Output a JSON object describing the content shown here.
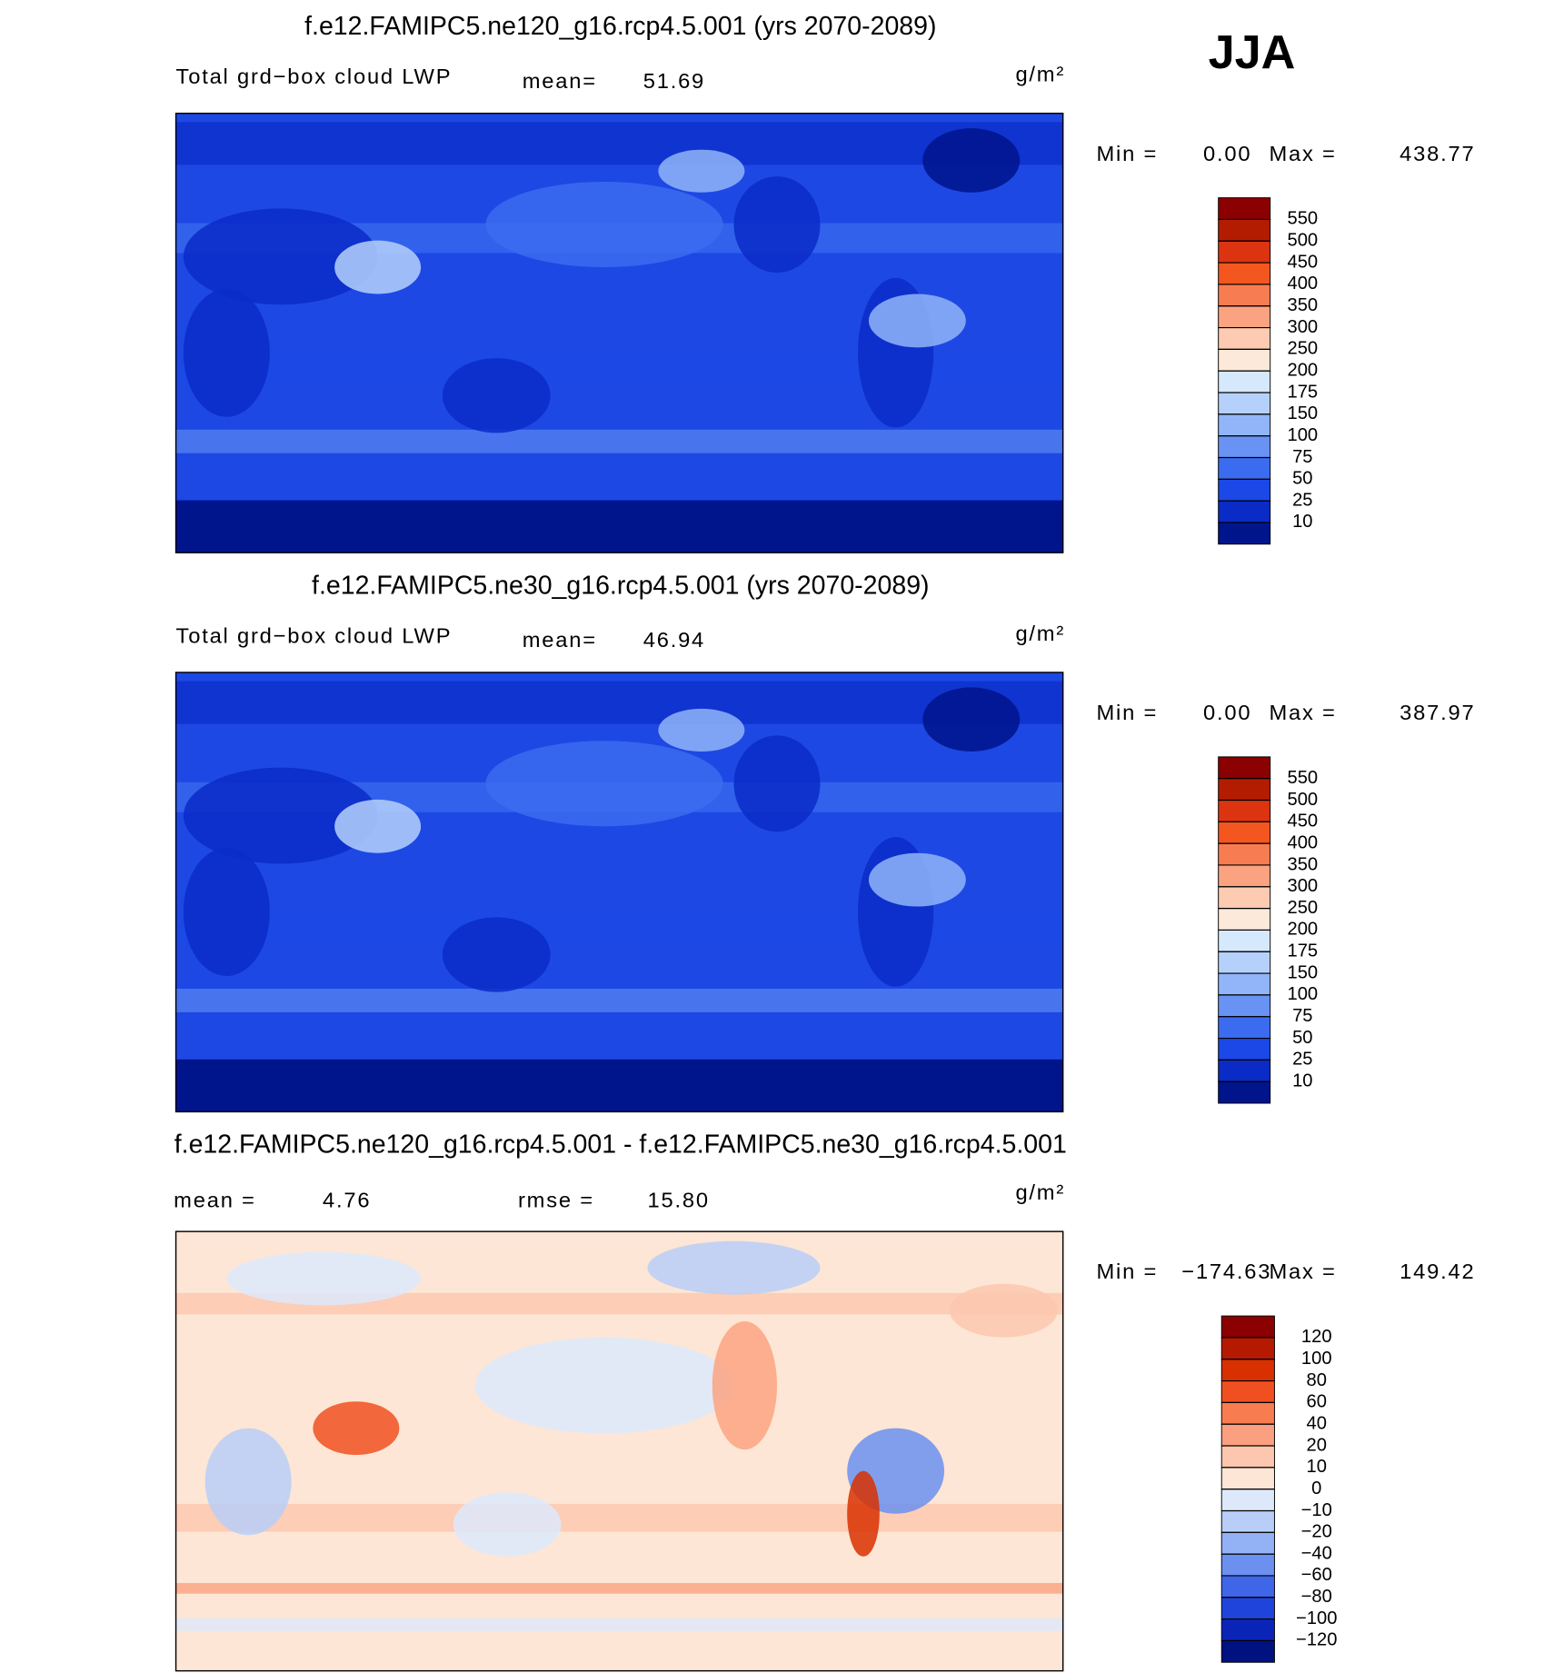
{
  "season": "JJA",
  "panels": [
    {
      "title": "f.e12.FAMIPC5.ne120_g16.rcp4.5.001 (yrs 2070-2089)",
      "subtitle": "Total grd−box cloud LWP",
      "mean_label": "mean=",
      "mean": 51.69,
      "units": "g/m²",
      "min_label": "Min =",
      "min": {
        "value": 0,
        "label": "0.00"
      },
      "max_label": "Max =",
      "max": 438.77,
      "colorbar": {
        "levels": [
          550,
          500,
          450,
          400,
          350,
          300,
          250,
          200,
          175,
          150,
          100,
          75,
          50,
          25,
          10
        ],
        "colors": [
          "#8b0000",
          "#b31c00",
          "#dc3410",
          "#f4561f",
          "#f87c52",
          "#fba381",
          "#fdcab2",
          "#fde9da",
          "#d5e8fc",
          "#b5d1fb",
          "#91b5f8",
          "#6893f4",
          "#3b6cf0",
          "#1b48e6",
          "#0a2bc6",
          "#00148c"
        ]
      }
    },
    {
      "title": "f.e12.FAMIPC5.ne30_g16.rcp4.5.001 (yrs 2070-2089)",
      "subtitle": "Total grd−box cloud LWP",
      "mean_label": "mean=",
      "mean": 46.94,
      "units": "g/m²",
      "min_label": "Min =",
      "min": {
        "value": 0,
        "label": "0.00"
      },
      "max_label": "Max =",
      "max": 387.97,
      "colorbar": {
        "levels": [
          550,
          500,
          450,
          400,
          350,
          300,
          250,
          200,
          175,
          150,
          100,
          75,
          50,
          25,
          10
        ],
        "colors": [
          "#8b0000",
          "#b31c00",
          "#dc3410",
          "#f4561f",
          "#f87c52",
          "#fba381",
          "#fdcab2",
          "#fde9da",
          "#d5e8fc",
          "#b5d1fb",
          "#91b5f8",
          "#6893f4",
          "#3b6cf0",
          "#1b48e6",
          "#0a2bc6",
          "#00148c"
        ]
      }
    },
    {
      "title": "f.e12.FAMIPC5.ne120_g16.rcp4.5.001 - f.e12.FAMIPC5.ne30_g16.rcp4.5.001",
      "mean_label": "mean =",
      "mean": 4.76,
      "rmse_label": "rmse =",
      "rmse": {
        "value": 15.8,
        "label": "15.80"
      },
      "units": "g/m²",
      "min_label": "Min =",
      "min": {
        "value": -174.63,
        "label": "−174.63"
      },
      "max_label": "Max =",
      "max": 149.42,
      "colorbar": {
        "levels": [
          120,
          100,
          80,
          60,
          40,
          20,
          10,
          0,
          {
            "value": -10,
            "label": "−10"
          },
          {
            "value": -20,
            "label": "−20"
          },
          {
            "value": -40,
            "label": "−40"
          },
          {
            "value": -60,
            "label": "−60"
          },
          {
            "value": -80,
            "label": "−80"
          },
          {
            "value": -100,
            "label": "−100"
          },
          {
            "value": -120,
            "label": "−120"
          }
        ],
        "colors": [
          "#8b0000",
          "#b51a00",
          "#d83000",
          "#f05020",
          "#f77c50",
          "#fa9f80",
          "#fcc7ae",
          "#fde6d5",
          "#dde9fb",
          "#b8cef8",
          "#93b2f5",
          "#6b90f0",
          "#3f66e8",
          "#1f44dc",
          "#0b24b8",
          "#001180"
        ]
      }
    }
  ]
}
